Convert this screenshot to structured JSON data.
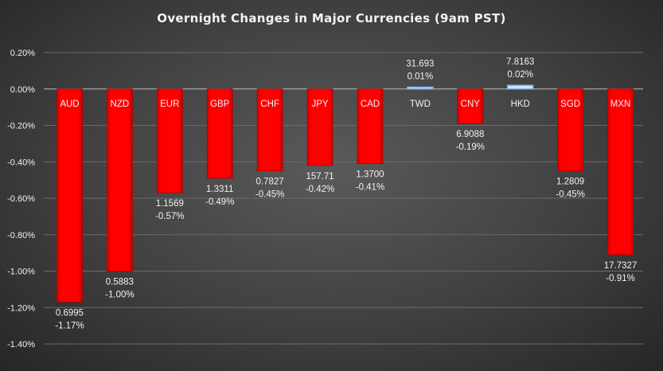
{
  "chart_data": {
    "type": "bar",
    "title": "Overnight Changes in Major Currencies (9am PST)",
    "categories": [
      "AUD",
      "NZD",
      "EUR",
      "GBP",
      "CHF",
      "JPY",
      "CAD",
      "TWD",
      "CNY",
      "HKD",
      "SGD",
      "MXN"
    ],
    "values": [
      -1.17,
      -1.0,
      -0.57,
      -0.49,
      -0.45,
      -0.42,
      -0.41,
      0.01,
      -0.19,
      0.02,
      -0.45,
      -0.91
    ],
    "value_labels": [
      "-1.17%",
      "-1.00%",
      "-0.57%",
      "-0.49%",
      "-0.45%",
      "-0.42%",
      "-0.41%",
      "0.01%",
      "-0.19%",
      "0.02%",
      "-0.45%",
      "-0.91%"
    ],
    "rates": [
      "0.6995",
      "0.5883",
      "1.1569",
      "1.3311",
      "0.7827",
      "157.71",
      "1.3700",
      "31.693",
      "6.9088",
      "7.8163",
      "1.2809",
      "17.7327"
    ],
    "ylim": [
      -1.4,
      0.2
    ],
    "yticks": [
      "0.20%",
      "0.00%",
      "-0.20%",
      "-0.40%",
      "-0.60%",
      "-0.80%",
      "-1.00%",
      "-1.20%",
      "-1.40%"
    ],
    "ytick_values": [
      0.2,
      0,
      -0.2,
      -0.4,
      -0.6,
      -0.8,
      -1.0,
      -1.2,
      -1.4
    ],
    "grid": true,
    "colors": {
      "negative": "#ff0000",
      "positive": "#7fb2ee",
      "text": "#f2f2f2",
      "grid": "#6a6a6a"
    }
  }
}
